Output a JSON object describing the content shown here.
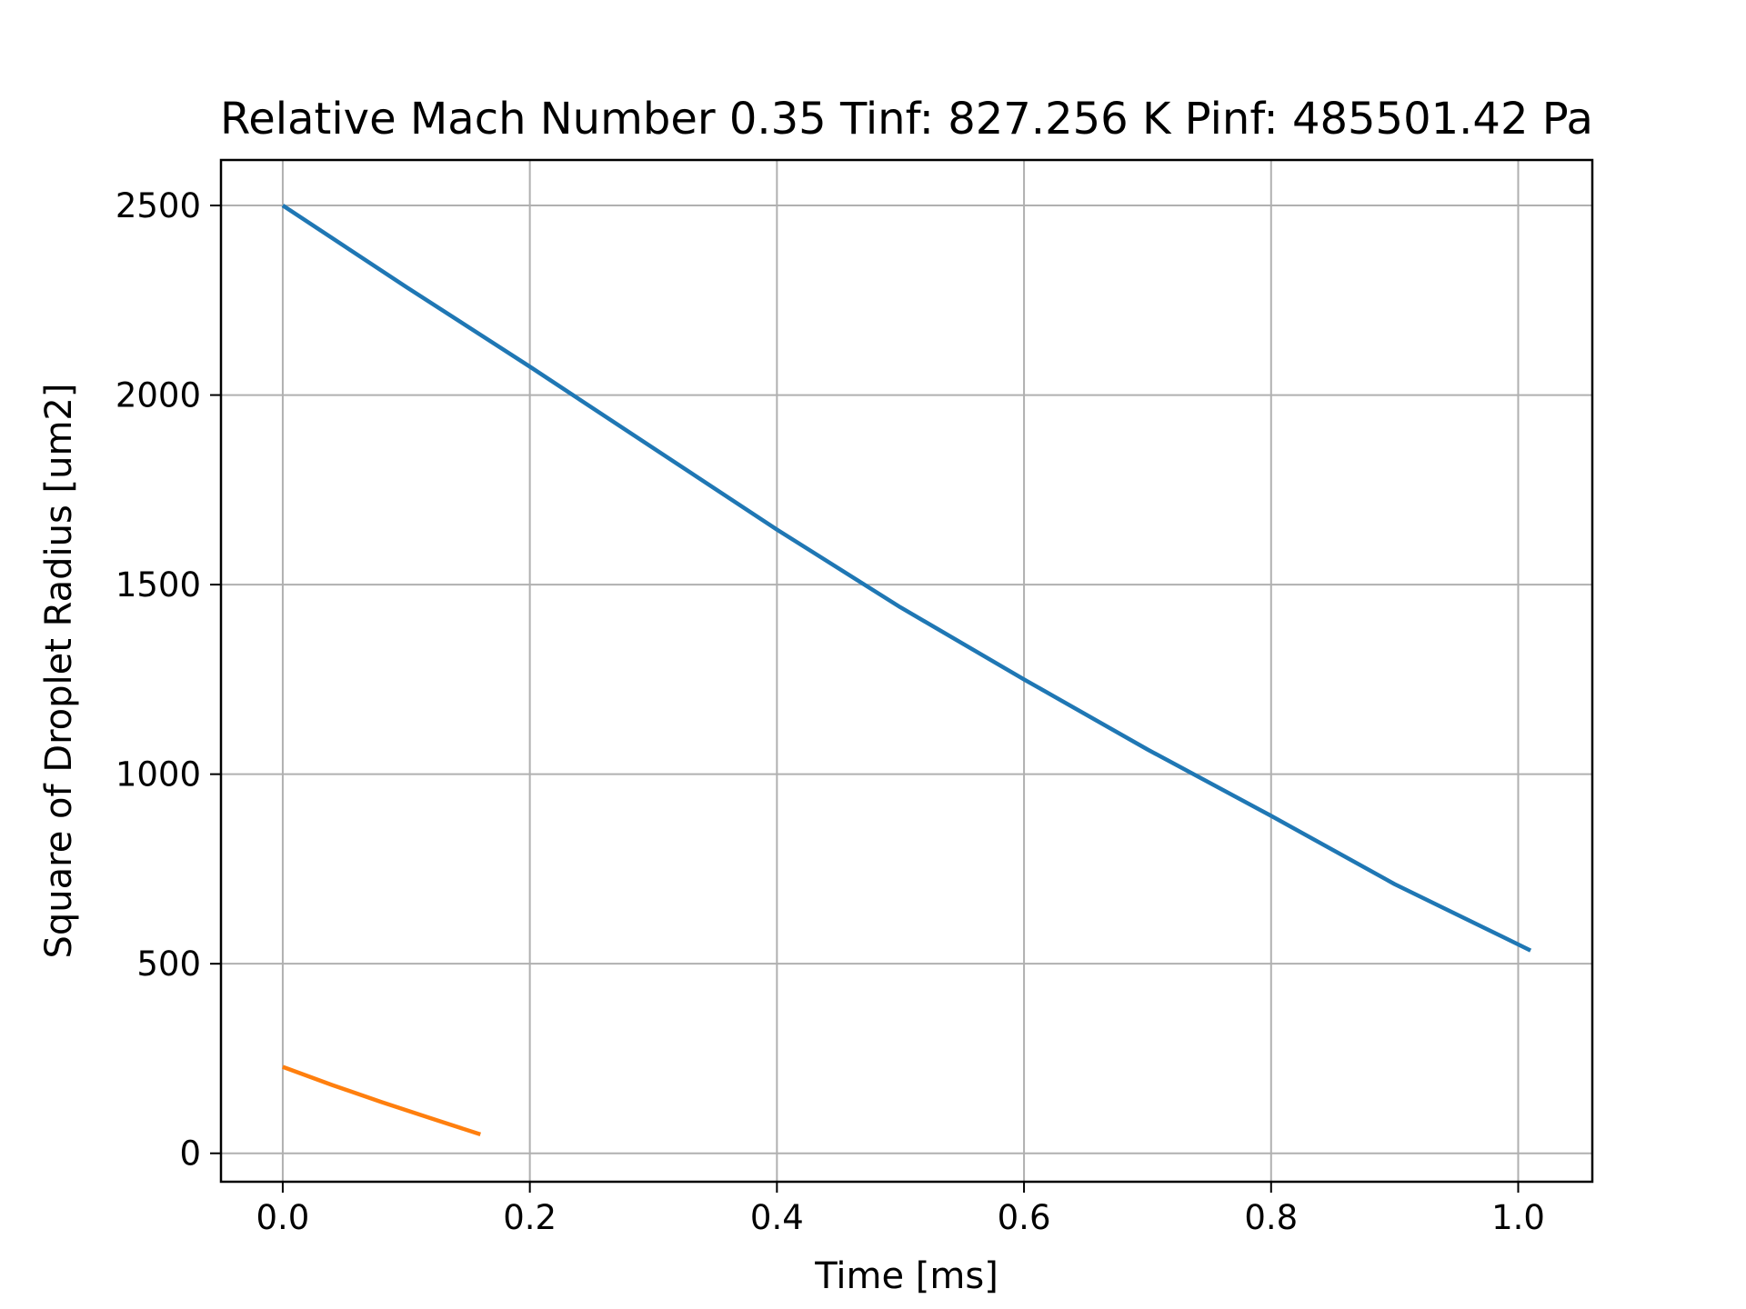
{
  "chart_data": {
    "type": "line",
    "title": "Relative Mach Number 0.35 Tinf: 827.256 K Pinf: 485501.42 Pa",
    "xlabel": "Time [ms]",
    "ylabel": "Square of Droplet Radius [um2]",
    "xlim": [
      -0.05,
      1.06
    ],
    "ylim": [
      -75,
      2620
    ],
    "xticks": [
      0.0,
      0.2,
      0.4,
      0.6,
      0.8,
      1.0
    ],
    "xtick_labels": [
      "0.0",
      "0.2",
      "0.4",
      "0.6",
      "0.8",
      "1.0"
    ],
    "yticks": [
      0,
      500,
      1000,
      1500,
      2000,
      2500
    ],
    "ytick_labels": [
      "0",
      "500",
      "1000",
      "1500",
      "2000",
      "2500"
    ],
    "grid": true,
    "series": [
      {
        "color": "#1f77b4",
        "x": [
          0.0,
          0.1,
          0.2,
          0.3,
          0.4,
          0.5,
          0.6,
          0.7,
          0.8,
          0.9,
          1.01
        ],
        "y": [
          2500,
          2285,
          2075,
          1860,
          1645,
          1440,
          1250,
          1065,
          890,
          710,
          535
        ]
      },
      {
        "color": "#ff7f0e",
        "x": [
          0.0,
          0.04,
          0.08,
          0.12,
          0.16
        ],
        "y": [
          228,
          180,
          135,
          92,
          50
        ]
      }
    ]
  }
}
